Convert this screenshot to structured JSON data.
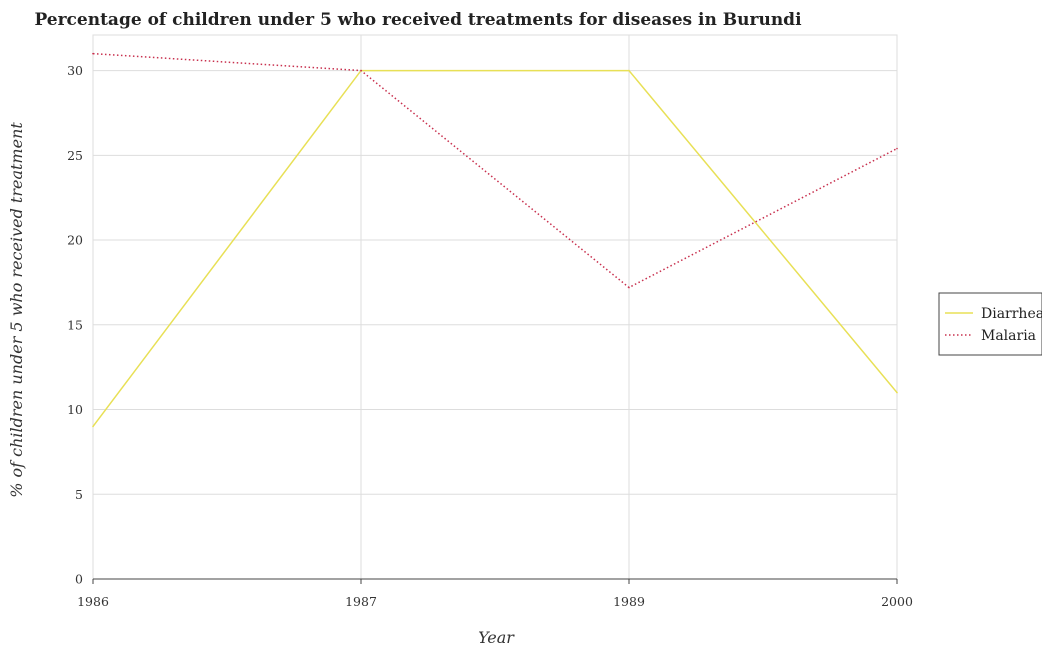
{
  "chart_data": {
    "type": "line",
    "title": "Percentage of children under 5 who received treatments for diseases in Burundi",
    "xlabel": "Year",
    "ylabel": "% of children under 5 who received treatment",
    "categories": [
      "1986",
      "1987",
      "1989",
      "2000"
    ],
    "y_ticks": [
      "0",
      "5",
      "10",
      "15",
      "20",
      "25",
      "30"
    ],
    "ylim": [
      0,
      32.1
    ],
    "grid": true,
    "legend_position": "right",
    "series": [
      {
        "name": "Diarrhea",
        "color": "#e8e056",
        "values": [
          9,
          30,
          30,
          11
        ],
        "dash": "solid"
      },
      {
        "name": "Malaria",
        "color": "#c8304e",
        "values": [
          31,
          30,
          17.2,
          25.4
        ],
        "dash": "dotted"
      }
    ]
  }
}
